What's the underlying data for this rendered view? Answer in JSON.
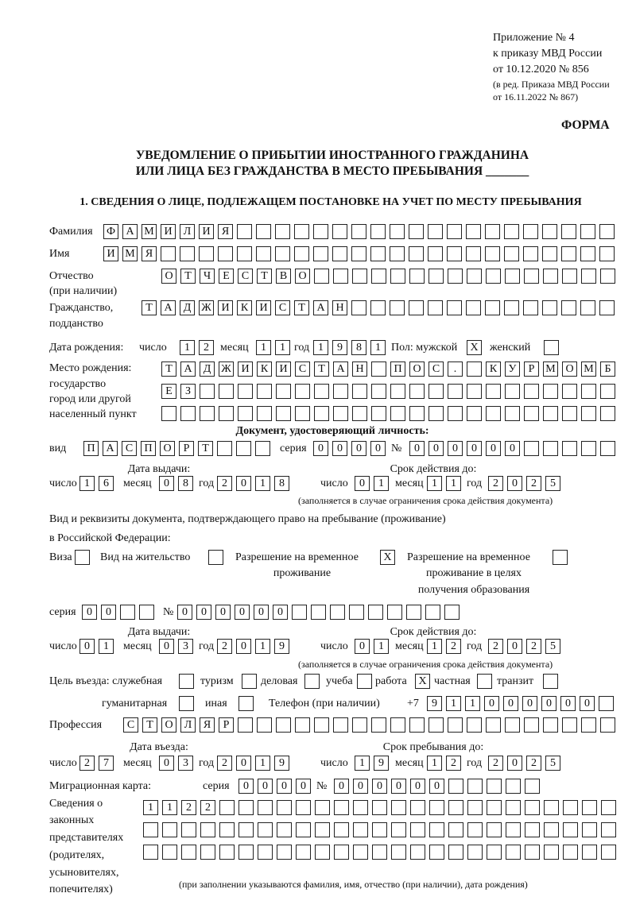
{
  "header": {
    "appendix": "Приложение № 4",
    "order": "к приказу МВД России",
    "date": "от 10.12.2020 № 856",
    "edition1": "(в ред. Приказа МВД России",
    "edition2": "от 16.11.2022 № 867)",
    "form_label": "ФОРМА"
  },
  "title": {
    "line1": "УВЕДОМЛЕНИЕ О ПРИБЫТИИ ИНОСТРАННОГО ГРАЖДАНИНА",
    "line2": "ИЛИ ЛИЦА БЕЗ ГРАЖДАНСТВА В МЕСТО ПРЕБЫВАНИЯ _______"
  },
  "section1": "1. СВЕДЕНИЯ О ЛИЦЕ, ПОДЛЕЖАЩЕМ ПОСТАНОВКЕ НА УЧЕТ ПО МЕСТУ ПРЕБЫВАНИЯ",
  "labels": {
    "day": "число",
    "month": "месяц",
    "year": "год",
    "series": "серия",
    "number": "№"
  },
  "person": {
    "surname_label": "Фамилия",
    "surname": "ФАМИЛИЯ",
    "name_label": "Имя",
    "name": "ИМЯ",
    "patronymic_label": "Отчество",
    "patronymic_note": "(при наличии)",
    "patronymic": "ОТЧЕСТВО",
    "citizenship_label1": "Гражданство,",
    "citizenship_label2": "подданство",
    "citizenship": "ТАДЖИКИСТАН"
  },
  "birth": {
    "label": "Дата рождения:",
    "day": "12",
    "month": "11",
    "year": "1981",
    "sex_label": "Пол: мужской",
    "female_label": "женский",
    "male_checked": "X",
    "female_checked": ""
  },
  "birthplace": {
    "label1": "Место рождения:",
    "label2": "государство",
    "label3": "город или другой",
    "label4": "населенный пункт",
    "row1": "ТАДЖИКИСТАН ПОС. КУРМОМБ",
    "row2": "ЕЗ",
    "row3": ""
  },
  "id_doc": {
    "heading": "Документ, удостоверяющий личность:",
    "type_label": "вид",
    "type": "ПАСПОРТ",
    "series": "0000",
    "number": "000000",
    "issue_label": "Дата выдачи:",
    "valid_label": "Срок действия до:",
    "issue": {
      "day": "16",
      "month": "08",
      "year": "2018"
    },
    "valid": {
      "day": "01",
      "month": "11",
      "year": "2025"
    },
    "note": "(заполняется в случае ограничения срока действия документа)"
  },
  "stay_doc": {
    "heading1": "Вид и реквизиты документа, подтверждающего право на пребывание (проживание)",
    "heading2": "в Российской Федерации:",
    "visa_label": "Виза",
    "visa": "",
    "residence_label": "Вид на жительство",
    "residence": "",
    "trp_label1": "Разрешение на временное",
    "trp_label2": "проживание",
    "trp": "X",
    "trp_edu_label1": "Разрешение на временное",
    "trp_edu_label2": "проживание в целях",
    "trp_edu_label3": "получения образования",
    "trp_edu": "",
    "series": "00",
    "number": "000000",
    "issue_label": "Дата выдачи:",
    "valid_label": "Срок действия до:",
    "issue": {
      "day": "01",
      "month": "03",
      "year": "2019"
    },
    "valid": {
      "day": "01",
      "month": "12",
      "year": "2025"
    },
    "note": "(заполняется в случае ограничения срока действия документа)"
  },
  "purpose": {
    "label": "Цель въезда: служебная",
    "official": "",
    "tourism_label": "туризм",
    "tourism": "",
    "business_label": "деловая",
    "business": "",
    "study_label": "учеба",
    "study": "",
    "work_label": "работа",
    "work": "X",
    "private_label": "частная",
    "private": "",
    "transit_label": "транзит",
    "transit": "",
    "humanitarian_label": "гуманитарная",
    "humanitarian": "",
    "other_label": "иная",
    "other": ""
  },
  "phone": {
    "label": "Телефон (при наличии)",
    "prefix": "+7",
    "value": "911000000"
  },
  "profession": {
    "label": "Профессия",
    "value": "СТОЛЯР"
  },
  "entry": {
    "entry_label": "Дата въезда:",
    "stay_label": "Срок пребывания до:",
    "entry": {
      "day": "27",
      "month": "03",
      "year": "2019"
    },
    "stay_until": {
      "day": "19",
      "month": "12",
      "year": "2025"
    }
  },
  "migration_card": {
    "label": "Миграционная карта:",
    "series": "0000",
    "number": "000000"
  },
  "representatives": {
    "label1": "Сведения о",
    "label2": "законных",
    "label3": "представителях",
    "label4": "(родителях,",
    "label5": "усыновителях,",
    "label6": "попечителях)",
    "row1": "1122",
    "row2": "",
    "row3": "",
    "note": "(при заполнении указываются фамилия, имя, отчество (при наличии), дата рождения)"
  }
}
